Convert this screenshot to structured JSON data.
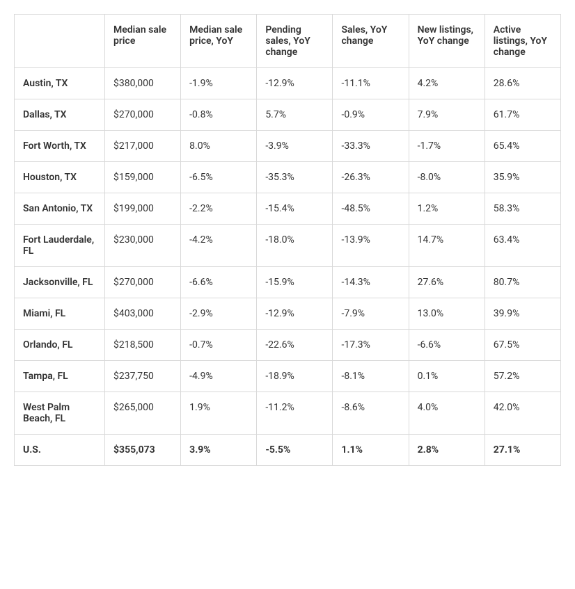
{
  "table": {
    "columns": [
      "",
      "Median sale price",
      "Median sale price, YoY",
      "Pending sales, YoY change",
      "Sales, YoY change",
      "New listings, YoY change",
      "Active listings, YoY change"
    ],
    "rows": [
      {
        "label": "Austin, TX",
        "cells": [
          "$380,000",
          "-1.9%",
          "-12.9%",
          "-11.1%",
          "4.2%",
          "28.6%"
        ]
      },
      {
        "label": "Dallas, TX",
        "cells": [
          "$270,000",
          "-0.8%",
          "5.7%",
          "-0.9%",
          "7.9%",
          "61.7%"
        ]
      },
      {
        "label": "Fort Worth, TX",
        "cells": [
          "$217,000",
          "8.0%",
          "-3.9%",
          "-33.3%",
          "-1.7%",
          "65.4%"
        ]
      },
      {
        "label": "Houston, TX",
        "cells": [
          "$159,000",
          "-6.5%",
          "-35.3%",
          "-26.3%",
          "-8.0%",
          "35.9%"
        ]
      },
      {
        "label": "San Antonio, TX",
        "cells": [
          "$199,000",
          "-2.2%",
          "-15.4%",
          "-48.5%",
          "1.2%",
          "58.3%"
        ]
      },
      {
        "label": "Fort Lauderdale, FL",
        "cells": [
          "$230,000",
          "-4.2%",
          "-18.0%",
          "-13.9%",
          "14.7%",
          "63.4%"
        ]
      },
      {
        "label": "Jacksonville, FL",
        "cells": [
          "$270,000",
          "-6.6%",
          "-15.9%",
          "-14.3%",
          "27.6%",
          "80.7%"
        ]
      },
      {
        "label": "Miami, FL",
        "cells": [
          "$403,000",
          "-2.9%",
          "-12.9%",
          "-7.9%",
          "13.0%",
          "39.9%"
        ]
      },
      {
        "label": "Orlando, FL",
        "cells": [
          "$218,500",
          "-0.7%",
          "-22.6%",
          "-17.3%",
          "-6.6%",
          "67.5%"
        ]
      },
      {
        "label": "Tampa, FL",
        "cells": [
          "$237,750",
          "-4.9%",
          "-18.9%",
          "-8.1%",
          "0.1%",
          "57.2%"
        ]
      },
      {
        "label": "West Palm Beach, FL",
        "cells": [
          "$265,000",
          "1.9%",
          "-11.2%",
          "-8.6%",
          "4.0%",
          "42.0%"
        ]
      },
      {
        "label": "U.S.",
        "cells": [
          "$355,073",
          "3.9%",
          "-5.5%",
          "1.1%",
          "2.8%",
          "27.1%"
        ]
      }
    ],
    "column_widths": [
      "130px",
      "110px",
      "110px",
      "110px",
      "100px",
      "110px",
      "116px"
    ],
    "border_color": "#d9d9d9",
    "header_fontweight": 600,
    "rowlabel_fontweight": 600,
    "lastrow_fontweight": 700,
    "cell_fontsize": 14,
    "cell_padding": "14px 12px",
    "text_color": "#333333",
    "background_color": "#ffffff"
  }
}
